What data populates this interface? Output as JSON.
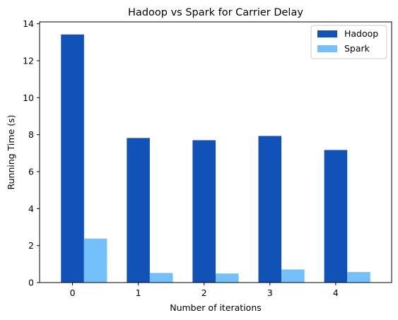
{
  "chart_data": {
    "type": "bar",
    "title": "Hadoop vs Spark for Carrier Delay",
    "xlabel": "Number of iterations",
    "ylabel": "Running Time (s)",
    "categories": [
      "0",
      "1",
      "2",
      "3",
      "4"
    ],
    "series": [
      {
        "name": "Hadoop",
        "color": "#1052b8",
        "values": [
          13.42,
          7.82,
          7.7,
          7.93,
          7.17
        ]
      },
      {
        "name": "Spark",
        "color": "#74c0fa",
        "values": [
          2.38,
          0.52,
          0.49,
          0.71,
          0.57
        ]
      }
    ],
    "ylim": [
      0,
      14.1
    ],
    "yticks": [
      "0",
      "2",
      "4",
      "6",
      "8",
      "10",
      "12",
      "14"
    ],
    "grid": false,
    "legend_position": "top-right"
  }
}
